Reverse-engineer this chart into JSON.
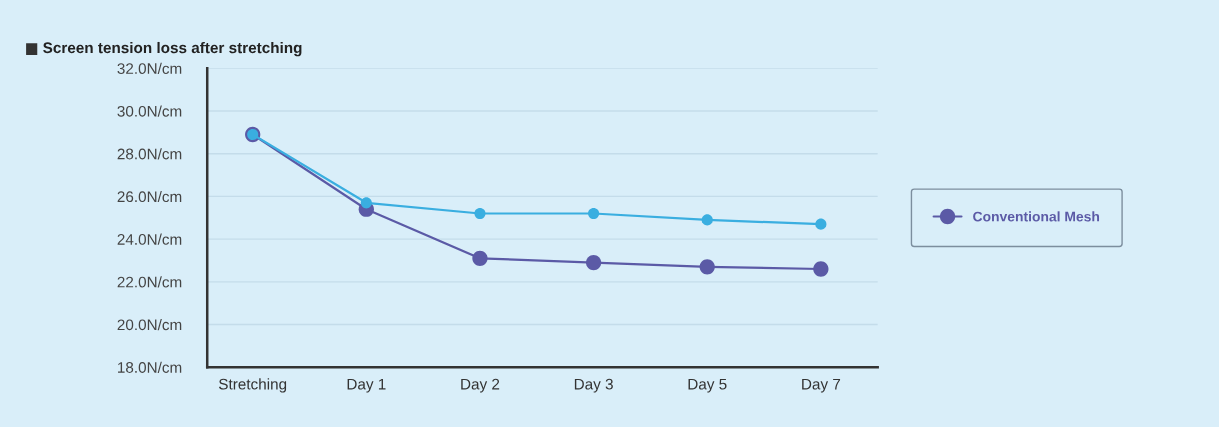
{
  "chart_data": {
    "type": "line",
    "title": "Screen tension loss after stretching",
    "categories": [
      "Stretching",
      "Day 1",
      "Day 2",
      "Day 3",
      "Day 5",
      "Day 7"
    ],
    "series": [
      {
        "color": "#3aaee0",
        "values": [
          28.9,
          25.7,
          25.2,
          25.2,
          24.9,
          24.7
        ]
      },
      {
        "name": "Conventional Mesh",
        "color": "#5b5aa6",
        "values": [
          28.9,
          25.4,
          23.1,
          22.9,
          22.7,
          22.6
        ]
      }
    ],
    "ylim": [
      18,
      32
    ],
    "yticks": [
      {
        "value": 18,
        "label": "18.0N/cm"
      },
      {
        "value": 20,
        "label": "20.0N/cm"
      },
      {
        "value": 22,
        "label": "22.0N/cm"
      },
      {
        "value": 24,
        "label": "24.0N/cm"
      },
      {
        "value": 26,
        "label": "26.0N/cm"
      },
      {
        "value": 28,
        "label": "28.0N/cm"
      },
      {
        "value": 30,
        "label": "30.0N/cm"
      },
      {
        "value": 32,
        "label": "32.0N/cm"
      }
    ],
    "grid": "y",
    "legend": "right",
    "marker": "circle",
    "line_style": "solid"
  }
}
